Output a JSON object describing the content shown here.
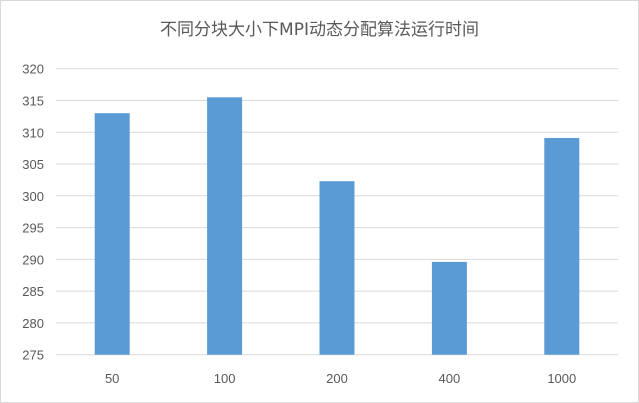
{
  "chart_data": {
    "type": "bar",
    "title": "不同分块大小下MPI动态分配算法运行时间",
    "categories": [
      "50",
      "100",
      "200",
      "400",
      "1000"
    ],
    "values": [
      313.0,
      315.5,
      302.3,
      289.6,
      309.1
    ],
    "xlabel": "",
    "ylabel": "",
    "ylim": [
      275,
      320
    ],
    "yticks": [
      "275",
      "280",
      "285",
      "290",
      "295",
      "300",
      "305",
      "310",
      "315",
      "320"
    ],
    "grid": true,
    "legend": "none",
    "colors": {
      "bar": "#5b9bd5",
      "grid": "#d9d9d9",
      "text": "#595959"
    }
  }
}
